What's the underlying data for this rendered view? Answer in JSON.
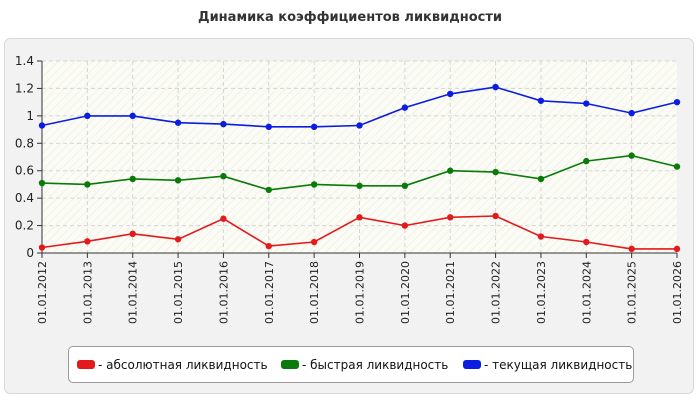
{
  "title": "Динамика коэффициентов ликвидности",
  "chart_data": {
    "type": "line",
    "title": "Динамика коэффициентов ликвидности",
    "x": [
      "01.01.2012",
      "01.01.2013",
      "01.01.2014",
      "01.01.2015",
      "01.01.2016",
      "01.01.2017",
      "01.01.2018",
      "01.01.2019",
      "01.01.2020",
      "01.01.2021",
      "01.01.2022",
      "01.01.2023",
      "01.01.2024",
      "01.01.2025",
      "01.01.2026"
    ],
    "yticks": [
      "0",
      "0.2",
      "0.4",
      "0.6",
      "0.8",
      "1",
      "1.2",
      "1.4"
    ],
    "ylim": [
      0,
      1.4
    ],
    "grid": true,
    "legend_position": "bottom",
    "series": [
      {
        "name": "- абсолютная ликвидность",
        "color": "#e31a1c",
        "values": [
          0.04,
          0.085,
          0.14,
          0.1,
          0.25,
          0.05,
          0.08,
          0.26,
          0.2,
          0.26,
          0.27,
          0.12,
          0.08,
          0.03,
          0.03
        ]
      },
      {
        "name": "- быстрая ликвидность",
        "color": "#0a7a0a",
        "values": [
          0.51,
          0.5,
          0.54,
          0.53,
          0.56,
          0.46,
          0.5,
          0.49,
          0.49,
          0.6,
          0.59,
          0.54,
          0.67,
          0.71,
          0.63
        ]
      },
      {
        "name": "- текущая ликвидность",
        "color": "#0b1de0",
        "values": [
          0.93,
          1.0,
          1.0,
          0.95,
          0.94,
          0.92,
          0.92,
          0.93,
          1.06,
          1.16,
          1.21,
          1.11,
          1.09,
          1.02,
          1.1
        ]
      }
    ]
  }
}
